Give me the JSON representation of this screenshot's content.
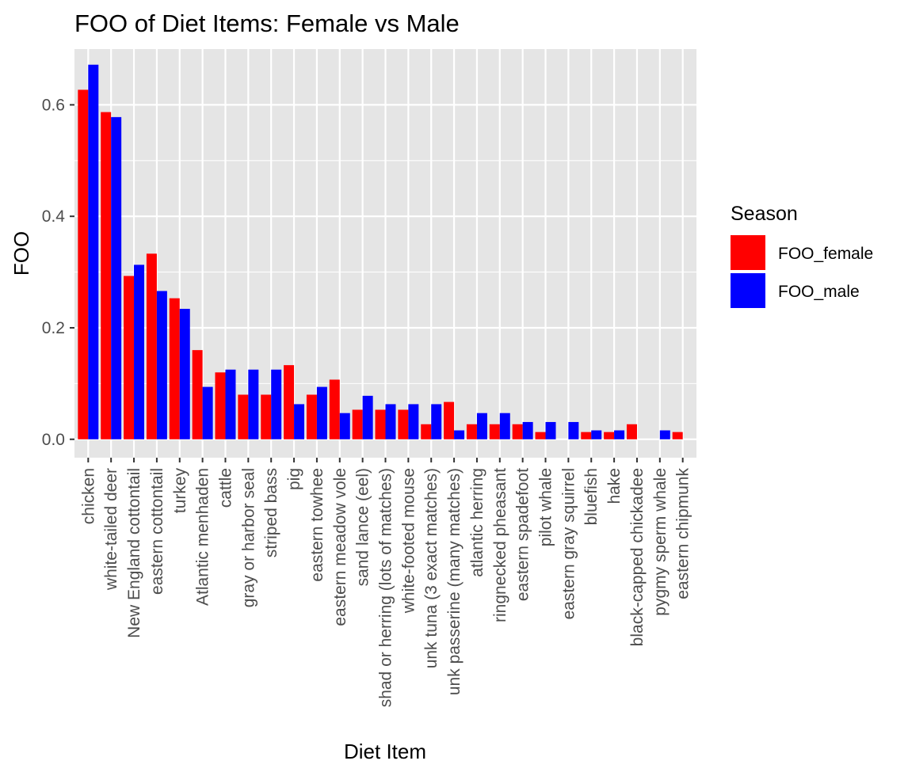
{
  "chart_data": {
    "type": "bar",
    "title": "FOO of Diet Items: Female vs Male",
    "xlabel": "Diet Item",
    "ylabel": "FOO",
    "ylim": [
      -0.033,
      0.7
    ],
    "yticks": [
      0.0,
      0.2,
      0.4,
      0.6
    ],
    "ytick_labels": [
      "0.0",
      "0.2",
      "0.4",
      "0.6"
    ],
    "grid": true,
    "legend_position": "right",
    "legend_title": "Season",
    "categories": [
      "chicken",
      "white-tailed deer",
      "New England cottontail",
      "eastern cottontail",
      "turkey",
      "Atlantic menhaden",
      "cattle",
      "gray or harbor seal",
      "striped bass",
      "pig",
      "eastern towhee",
      "eastern meadow vole",
      "sand lance (eel)",
      "shad or herring (lots of matches)",
      "white-footed mouse",
      "unk tuna (3 exact matches)",
      "unk passerine (many matches)",
      "atlantic herring",
      "ringnecked pheasant",
      "eastern spadefoot",
      "pilot whale",
      "eastern gray squirrel",
      "bluefish",
      "hake",
      "black-capped chickadee",
      "pygmy sperm whale",
      "eastern chipmunk"
    ],
    "series": [
      {
        "name": "FOO_female",
        "color": "#ff0000",
        "values": [
          0.627,
          0.587,
          0.293,
          0.333,
          0.253,
          0.16,
          0.12,
          0.08,
          0.08,
          0.133,
          0.08,
          0.107,
          0.053,
          0.053,
          0.053,
          0.027,
          0.067,
          0.027,
          0.027,
          0.027,
          0.013,
          0.0,
          0.013,
          0.013,
          0.027,
          0.0,
          0.013
        ]
      },
      {
        "name": "FOO_male",
        "color": "#0000ff",
        "values": [
          0.672,
          0.578,
          0.313,
          0.266,
          0.234,
          0.094,
          0.125,
          0.125,
          0.125,
          0.063,
          0.094,
          0.047,
          0.078,
          0.063,
          0.063,
          0.063,
          0.016,
          0.047,
          0.047,
          0.031,
          0.031,
          0.031,
          0.016,
          0.016,
          0.0,
          0.016,
          0.0
        ]
      }
    ]
  },
  "colors": {
    "panel_bg": "#e5e5e5",
    "grid": "#ffffff",
    "tick_text": "#4d4d4d",
    "tick_mark": "#333333"
  }
}
